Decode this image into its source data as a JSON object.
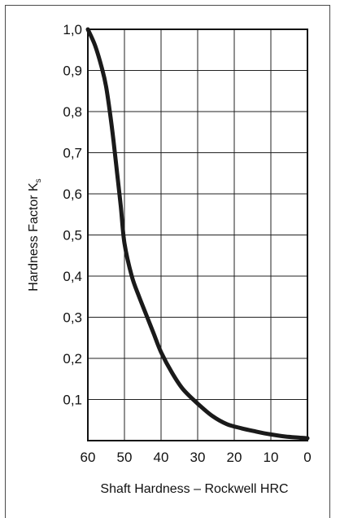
{
  "chart_data": {
    "type": "line",
    "xlabel": "Shaft Hardness – Rockwell HRC",
    "ylabel": "Hardness Factor K",
    "ylabel_subscript": "s",
    "xlim": [
      60,
      0
    ],
    "ylim": [
      0,
      1.0
    ],
    "x_ticks": [
      60,
      50,
      40,
      30,
      20,
      10,
      0
    ],
    "x_tick_labels": [
      "60",
      "50",
      "40",
      "30",
      "20",
      "10",
      "0"
    ],
    "y_ticks": [
      1.0,
      0.9,
      0.8,
      0.7,
      0.6,
      0.5,
      0.4,
      0.3,
      0.2,
      0.1
    ],
    "y_tick_labels": [
      "1,0",
      "0,9",
      "0,8",
      "0,7",
      "0,6",
      "0,5",
      "0,4",
      "0,3",
      "0,2",
      "0,1"
    ],
    "grid": true,
    "series": [
      {
        "color": "#1a1a1a",
        "x": [
          60,
          58,
          56,
          55,
          54,
          53,
          52,
          51,
          50,
          48,
          46,
          44,
          42,
          40,
          37,
          34,
          30,
          26,
          22,
          18,
          14,
          10,
          6,
          2,
          0
        ],
        "y": [
          1.0,
          0.96,
          0.9,
          0.86,
          0.8,
          0.73,
          0.65,
          0.57,
          0.48,
          0.4,
          0.35,
          0.305,
          0.26,
          0.215,
          0.165,
          0.125,
          0.09,
          0.06,
          0.04,
          0.03,
          0.022,
          0.015,
          0.01,
          0.007,
          0.006
        ]
      }
    ]
  }
}
